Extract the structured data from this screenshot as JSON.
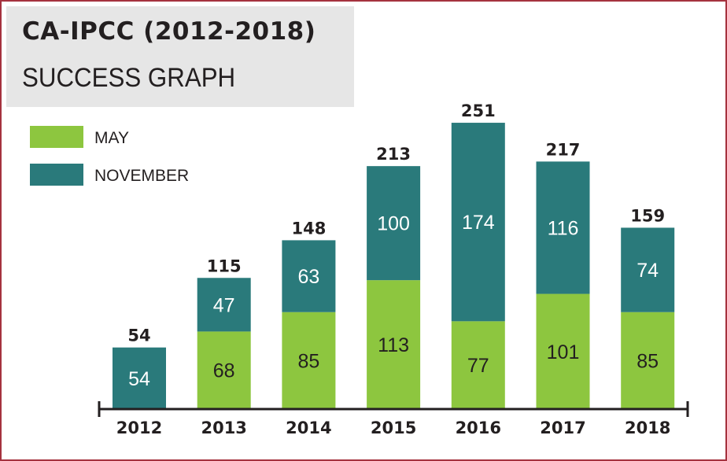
{
  "title": "CA-IPCC (2012-2018)",
  "subtitle": "SUCCESS GRAPH",
  "colors": {
    "may": "#8dc63f",
    "november": "#2a7a7b",
    "border": "#a5323e",
    "text": "#231f20"
  },
  "legend": [
    {
      "label": "MAY",
      "color": "#8dc63f"
    },
    {
      "label": "NOVEMBER",
      "color": "#2a7a7b"
    }
  ],
  "chart_data": {
    "type": "bar",
    "stacked": true,
    "title": "CA-IPCC (2012-2018)",
    "subtitle": "SUCCESS GRAPH",
    "categories": [
      "2012",
      "2013",
      "2014",
      "2015",
      "2016",
      "2017",
      "2018"
    ],
    "series": [
      {
        "name": "MAY",
        "values": [
          0,
          68,
          85,
          113,
          77,
          101,
          85
        ]
      },
      {
        "name": "NOVEMBER",
        "values": [
          54,
          47,
          63,
          100,
          174,
          116,
          74
        ]
      }
    ],
    "totals": [
      54,
      115,
      148,
      213,
      251,
      217,
      159
    ],
    "ylim": [
      0,
      260
    ],
    "legend_position": "top-left",
    "grid": false
  }
}
